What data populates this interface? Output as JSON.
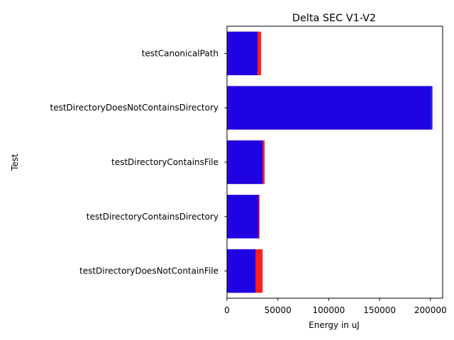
{
  "chart_data": {
    "type": "bar",
    "orientation": "horizontal",
    "stacked": "overlay",
    "title": "Delta SEC V1-V2",
    "xlabel": "Energy in uJ",
    "ylabel": "Test",
    "categories": [
      "testCanonicalPath",
      "testDirectoryDoesNotContainsDirectory",
      "testDirectoryContainsFile",
      "testDirectoryContainsDirectory",
      "testDirectoryDoesNotContainFile"
    ],
    "series": [
      {
        "color": "#ff0000",
        "values": [
          33500,
          200000,
          37000,
          32000,
          35000
        ]
      },
      {
        "color": "#0000ff",
        "values": [
          30000,
          202000,
          35000,
          31000,
          28000
        ]
      }
    ],
    "xlim": [
      0,
      212000
    ],
    "xticks": [
      0,
      50000,
      100000,
      150000,
      200000
    ],
    "grid": false,
    "legend": false
  }
}
